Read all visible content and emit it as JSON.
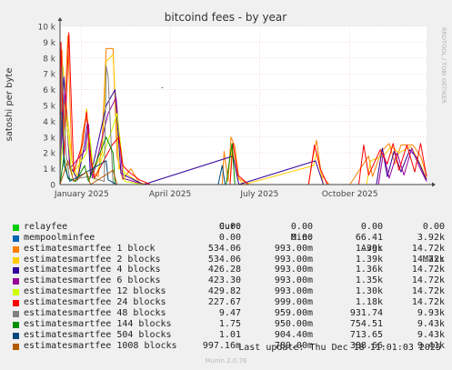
{
  "chart_data": {
    "type": "line",
    "title": "bitcoind fees - by year",
    "ylabel": "satoshi per byte",
    "side_label": "RRDTOOL / TOBI OETIKER",
    "ylim": [
      0,
      10000
    ],
    "y_ticks": [
      {
        "value": 0,
        "label": "0"
      },
      {
        "value": 1000,
        "label": "1 k"
      },
      {
        "value": 2000,
        "label": "2 k"
      },
      {
        "value": 3000,
        "label": "3 k"
      },
      {
        "value": 4000,
        "label": "4 k"
      },
      {
        "value": 5000,
        "label": "5 k"
      },
      {
        "value": 6000,
        "label": "6 k"
      },
      {
        "value": 7000,
        "label": "7 k"
      },
      {
        "value": 8000,
        "label": "8 k"
      },
      {
        "value": 9000,
        "label": "9 k"
      },
      {
        "value": 10000,
        "label": "10 k"
      }
    ],
    "xlim": [
      "2024-12-10",
      "2025-12-18"
    ],
    "x_ticks": [
      {
        "date": "2025-01-01",
        "label": "January 2025"
      },
      {
        "date": "2025-04-01",
        "label": "April 2025"
      },
      {
        "date": "2025-07-01",
        "label": "July 2025"
      },
      {
        "date": "2025-10-01",
        "label": "October 2025"
      }
    ],
    "grid": true,
    "series": [
      {
        "name": "relayfee",
        "color": "#00cc00",
        "points": [
          [
            "2024-12-10",
            0
          ],
          [
            "2025-12-18",
            0
          ]
        ]
      },
      {
        "name": "mempoolminfee",
        "color": "#0066b3",
        "points": [
          [
            "2024-12-10",
            0
          ],
          [
            "2025-12-18",
            0
          ]
        ]
      },
      {
        "name": "estimatesmartfee 1 block",
        "color": "#ff8000",
        "points": [
          [
            "2024-12-10",
            2000
          ],
          [
            "2024-12-12",
            8500
          ],
          [
            "2024-12-14",
            3500
          ],
          [
            "2024-12-18",
            9400
          ],
          [
            "2024-12-22",
            1500
          ],
          [
            "2024-12-28",
            400
          ],
          [
            "2025-01-02",
            3200
          ],
          [
            "2025-01-05",
            4200
          ],
          [
            "2025-01-08",
            3800
          ],
          [
            "2025-01-10",
            900
          ],
          [
            "2025-01-18",
            500
          ],
          [
            "2025-01-22",
            3000
          ],
          [
            "2025-01-26",
            8600
          ],
          [
            "2025-02-02",
            8600
          ],
          [
            "2025-02-06",
            1800
          ],
          [
            "2025-02-12",
            300
          ],
          [
            "2025-02-20",
            1000
          ],
          [
            "2025-03-01",
            100
          ],
          [
            "2025-03-10",
            0
          ],
          [
            "2025-05-24",
            0
          ],
          [
            "2025-05-26",
            2100
          ],
          [
            "2025-05-30",
            200
          ],
          [
            "2025-06-02",
            3000
          ],
          [
            "2025-06-06",
            2400
          ],
          [
            "2025-06-10",
            400
          ],
          [
            "2025-06-20",
            0
          ],
          [
            "2025-08-20",
            0
          ],
          [
            "2025-08-24",
            1600
          ],
          [
            "2025-08-28",
            2800
          ],
          [
            "2025-09-02",
            600
          ],
          [
            "2025-09-10",
            0
          ],
          [
            "2025-10-01",
            0
          ],
          [
            "2025-10-20",
            1800
          ],
          [
            "2025-10-24",
            500
          ],
          [
            "2025-11-02",
            2100
          ],
          [
            "2025-11-10",
            2600
          ],
          [
            "2025-11-16",
            1300
          ],
          [
            "2025-11-22",
            2500
          ],
          [
            "2025-12-04",
            2500
          ],
          [
            "2025-12-12",
            1800
          ],
          [
            "2025-12-18",
            600
          ]
        ]
      },
      {
        "name": "estimatesmartfee 2 blocks",
        "color": "#ffcc00",
        "points": [
          [
            "2024-12-10",
            1800
          ],
          [
            "2024-12-13",
            7500
          ],
          [
            "2024-12-18",
            4000
          ],
          [
            "2024-12-22",
            1500
          ],
          [
            "2024-12-28",
            400
          ],
          [
            "2025-01-03",
            3000
          ],
          [
            "2025-01-06",
            4800
          ],
          [
            "2025-01-08",
            3500
          ],
          [
            "2025-01-12",
            800
          ],
          [
            "2025-01-22",
            2000
          ],
          [
            "2025-01-26",
            7800
          ],
          [
            "2025-02-02",
            8200
          ],
          [
            "2025-02-08",
            1000
          ],
          [
            "2025-03-01",
            100
          ],
          [
            "2025-03-10",
            0
          ],
          [
            "2025-06-01",
            0
          ],
          [
            "2025-06-03",
            2400
          ],
          [
            "2025-06-08",
            500
          ],
          [
            "2025-06-15",
            0
          ],
          [
            "2025-08-25",
            1200
          ],
          [
            "2025-08-28",
            2000
          ],
          [
            "2025-09-04",
            0
          ],
          [
            "2025-10-18",
            0
          ],
          [
            "2025-10-22",
            1500
          ],
          [
            "2025-11-04",
            1800
          ],
          [
            "2025-11-12",
            2400
          ],
          [
            "2025-11-20",
            2000
          ],
          [
            "2025-12-02",
            2400
          ],
          [
            "2025-12-10",
            1500
          ],
          [
            "2025-12-18",
            400
          ]
        ]
      },
      {
        "name": "estimatesmartfee 4 blocks",
        "color": "#330099",
        "points": [
          [
            "2024-12-10",
            1500
          ],
          [
            "2024-12-14",
            6800
          ],
          [
            "2024-12-20",
            1200
          ],
          [
            "2024-12-28",
            300
          ],
          [
            "2025-01-04",
            2500
          ],
          [
            "2025-01-07",
            4000
          ],
          [
            "2025-01-10",
            500
          ],
          [
            "2025-01-26",
            5000
          ],
          [
            "2025-02-04",
            6000
          ],
          [
            "2025-02-10",
            700
          ],
          [
            "2025-03-05",
            0
          ],
          [
            "2025-06-04",
            1800
          ],
          [
            "2025-06-10",
            0
          ],
          [
            "2025-08-27",
            1500
          ],
          [
            "2025-09-04",
            0
          ],
          [
            "2025-10-28",
            0
          ],
          [
            "2025-11-03",
            2300
          ],
          [
            "2025-11-08",
            500
          ],
          [
            "2025-11-15",
            2100
          ],
          [
            "2025-11-22",
            800
          ],
          [
            "2025-12-01",
            2200
          ],
          [
            "2025-12-08",
            1700
          ],
          [
            "2025-12-18",
            300
          ]
        ]
      },
      {
        "name": "estimatesmartfee 6 blocks",
        "color": "#990099",
        "points": [
          [
            "2024-12-10",
            1200
          ],
          [
            "2024-12-15",
            6000
          ],
          [
            "2024-12-20",
            1000
          ],
          [
            "2025-01-05",
            2200
          ],
          [
            "2025-01-08",
            3800
          ],
          [
            "2025-01-12",
            400
          ],
          [
            "2025-01-28",
            4500
          ],
          [
            "2025-02-05",
            5500
          ],
          [
            "2025-02-12",
            400
          ],
          [
            "2025-03-05",
            0
          ],
          [
            "2025-10-30",
            0
          ],
          [
            "2025-11-04",
            2000
          ],
          [
            "2025-11-10",
            400
          ],
          [
            "2025-11-18",
            2000
          ],
          [
            "2025-11-25",
            600
          ],
          [
            "2025-12-03",
            2300
          ],
          [
            "2025-12-10",
            1200
          ],
          [
            "2025-12-18",
            200
          ]
        ]
      },
      {
        "name": "estimatesmartfee 12 blocks",
        "color": "#ccff00",
        "points": [
          [
            "2024-12-10",
            800
          ],
          [
            "2024-12-16",
            4500
          ],
          [
            "2024-12-22",
            600
          ],
          [
            "2025-01-06",
            2000
          ],
          [
            "2025-01-09",
            3200
          ],
          [
            "2025-01-14",
            300
          ],
          [
            "2025-02-01",
            3500
          ],
          [
            "2025-02-06",
            4500
          ],
          [
            "2025-02-14",
            200
          ],
          [
            "2025-03-05",
            0
          ],
          [
            "2025-12-18",
            0
          ]
        ]
      },
      {
        "name": "estimatesmartfee 24 blocks",
        "color": "#ff0000",
        "points": [
          [
            "2024-12-10",
            500
          ],
          [
            "2024-12-11",
            9000
          ],
          [
            "2024-12-14",
            1400
          ],
          [
            "2024-12-19",
            9600
          ],
          [
            "2024-12-24",
            800
          ],
          [
            "2025-01-02",
            2600
          ],
          [
            "2025-01-06",
            4600
          ],
          [
            "2025-01-09",
            2200
          ],
          [
            "2025-01-14",
            400
          ],
          [
            "2025-02-01",
            2500
          ],
          [
            "2025-02-08",
            3000
          ],
          [
            "2025-02-12",
            1200
          ],
          [
            "2025-02-18",
            800
          ],
          [
            "2025-03-01",
            300
          ],
          [
            "2025-03-12",
            0
          ],
          [
            "2025-06-01",
            0
          ],
          [
            "2025-06-04",
            2600
          ],
          [
            "2025-06-09",
            600
          ],
          [
            "2025-06-20",
            0
          ],
          [
            "2025-08-20",
            0
          ],
          [
            "2025-08-26",
            2500
          ],
          [
            "2025-09-01",
            1000
          ],
          [
            "2025-09-08",
            0
          ],
          [
            "2025-10-10",
            0
          ],
          [
            "2025-10-15",
            2500
          ],
          [
            "2025-10-20",
            600
          ],
          [
            "2025-11-01",
            2200
          ],
          [
            "2025-11-08",
            1300
          ],
          [
            "2025-11-14",
            2600
          ],
          [
            "2025-11-20",
            900
          ],
          [
            "2025-11-28",
            2500
          ],
          [
            "2025-12-06",
            800
          ],
          [
            "2025-12-12",
            2600
          ],
          [
            "2025-12-18",
            500
          ]
        ]
      },
      {
        "name": "estimatesmartfee 48 blocks",
        "color": "#808080",
        "points": [
          [
            "2024-12-10",
            0
          ],
          [
            "2024-12-12",
            7500
          ],
          [
            "2024-12-16",
            2000
          ],
          [
            "2024-12-20",
            300
          ],
          [
            "2025-01-08",
            500
          ],
          [
            "2025-01-24",
            200
          ],
          [
            "2025-01-26",
            7500
          ],
          [
            "2025-01-28",
            6800
          ],
          [
            "2025-02-02",
            0
          ],
          [
            "2025-12-18",
            0
          ]
        ]
      },
      {
        "name": "estimatesmartfee 144 blocks",
        "color": "#008f00",
        "points": [
          [
            "2024-12-10",
            0
          ],
          [
            "2024-12-14",
            1800
          ],
          [
            "2024-12-18",
            400
          ],
          [
            "2024-12-26",
            200
          ],
          [
            "2025-01-04",
            1200
          ],
          [
            "2025-01-08",
            200
          ],
          [
            "2025-01-26",
            3000
          ],
          [
            "2025-02-02",
            2000
          ],
          [
            "2025-02-04",
            0
          ],
          [
            "2025-05-28",
            0
          ],
          [
            "2025-06-03",
            2600
          ],
          [
            "2025-06-06",
            0
          ],
          [
            "2025-12-18",
            0
          ]
        ]
      },
      {
        "name": "estimatesmartfee 504 blocks",
        "color": "#00487d",
        "points": [
          [
            "2024-12-10",
            4500
          ],
          [
            "2024-12-12",
            4500
          ],
          [
            "2024-12-14",
            1200
          ],
          [
            "2024-12-20",
            200
          ],
          [
            "2025-01-26",
            1500
          ],
          [
            "2025-01-28",
            300
          ],
          [
            "2025-02-06",
            0
          ],
          [
            "2025-05-20",
            0
          ],
          [
            "2025-05-24",
            1200
          ],
          [
            "2025-05-27",
            0
          ],
          [
            "2025-12-18",
            0
          ]
        ]
      },
      {
        "name": "estimatesmartfee 1008 blocks",
        "color": "#b35a00",
        "points": [
          [
            "2024-12-10",
            0
          ],
          [
            "2024-12-18",
            1500
          ],
          [
            "2024-12-24",
            200
          ],
          [
            "2025-01-06",
            800
          ],
          [
            "2025-01-10",
            0
          ],
          [
            "2025-02-02",
            900
          ],
          [
            "2025-02-06",
            0
          ],
          [
            "2025-12-18",
            0
          ]
        ]
      }
    ],
    "annotations": [
      {
        "x": "2025-03-24",
        "y": 6000,
        "label": "-"
      }
    ]
  },
  "legend": {
    "headers": {
      "cur": "Cur:",
      "min": "Min:",
      "avg": "Avg:",
      "max": "Max:"
    },
    "rows": [
      {
        "name": "relayfee",
        "color": "#00cc00",
        "cur": "0.00",
        "min": "0.00",
        "avg": "0.00",
        "max": "0.00"
      },
      {
        "name": "mempoolminfee",
        "color": "#0066b3",
        "cur": "0.00",
        "min": "0.00",
        "avg": "66.41",
        "max": "3.92k"
      },
      {
        "name": "estimatesmartfee 1 block",
        "color": "#ff8000",
        "cur": "534.06",
        "min": "993.00m",
        "avg": "1.39k",
        "max": "14.72k"
      },
      {
        "name": "estimatesmartfee 2 blocks",
        "color": "#ffcc00",
        "cur": "534.06",
        "min": "993.00m",
        "avg": "1.39k",
        "max": "14.72k"
      },
      {
        "name": "estimatesmartfee 4 blocks",
        "color": "#330099",
        "cur": "426.28",
        "min": "993.00m",
        "avg": "1.36k",
        "max": "14.72k"
      },
      {
        "name": "estimatesmartfee 6 blocks",
        "color": "#990099",
        "cur": "423.30",
        "min": "993.00m",
        "avg": "1.35k",
        "max": "14.72k"
      },
      {
        "name": "estimatesmartfee 12 blocks",
        "color": "#ccff00",
        "cur": "429.82",
        "min": "993.00m",
        "avg": "1.30k",
        "max": "14.72k"
      },
      {
        "name": "estimatesmartfee 24 blocks",
        "color": "#ff0000",
        "cur": "227.67",
        "min": "999.00m",
        "avg": "1.18k",
        "max": "14.72k"
      },
      {
        "name": "estimatesmartfee 48 blocks",
        "color": "#808080",
        "cur": "9.47",
        "min": "959.00m",
        "avg": "931.74",
        "max": "9.93k"
      },
      {
        "name": "estimatesmartfee 144 blocks",
        "color": "#008f00",
        "cur": "1.75",
        "min": "950.00m",
        "avg": "754.51",
        "max": "9.43k"
      },
      {
        "name": "estimatesmartfee 504 blocks",
        "color": "#00487d",
        "cur": "1.01",
        "min": "904.40m",
        "avg": "713.65",
        "max": "9.43k"
      },
      {
        "name": "estimatesmartfee 1008 blocks",
        "color": "#b35a00",
        "cur": "997.16m",
        "min": "789.00m",
        "avg": "388.66",
        "max": "9.41k"
      }
    ]
  },
  "footer": {
    "last_update": "Last update: Thu Dec 18 11:01:03 2025",
    "version": "Munin 2.0.76"
  }
}
